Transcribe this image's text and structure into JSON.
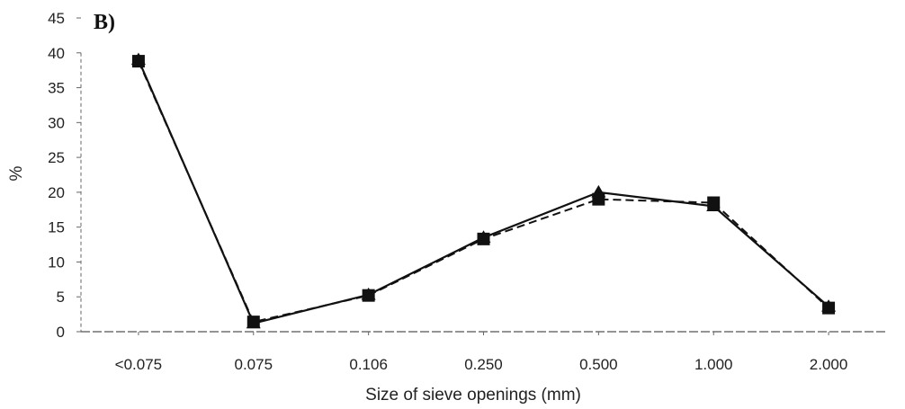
{
  "chart_data": {
    "type": "line",
    "panel_label": "B)",
    "title": "",
    "xlabel": "Size of sieve openings (mm)",
    "ylabel": "%",
    "categories": [
      "<0.075",
      "0.075",
      "0.106",
      "0.250",
      "0.500",
      "1.000",
      "2.000"
    ],
    "ylim": [
      0,
      45
    ],
    "yticks": [
      0,
      5,
      10,
      15,
      20,
      25,
      30,
      35,
      40,
      45
    ],
    "grid": false,
    "series": [
      {
        "values": [
          39,
          1.2,
          5.3,
          13.5,
          20,
          18,
          3.6
        ],
        "marker": "triangle",
        "dash": "solid",
        "color": "#111111"
      },
      {
        "values": [
          38.8,
          1.4,
          5.2,
          13.3,
          19,
          18.5,
          3.4
        ],
        "marker": "square",
        "dash": "dashed",
        "color": "#111111"
      }
    ]
  }
}
